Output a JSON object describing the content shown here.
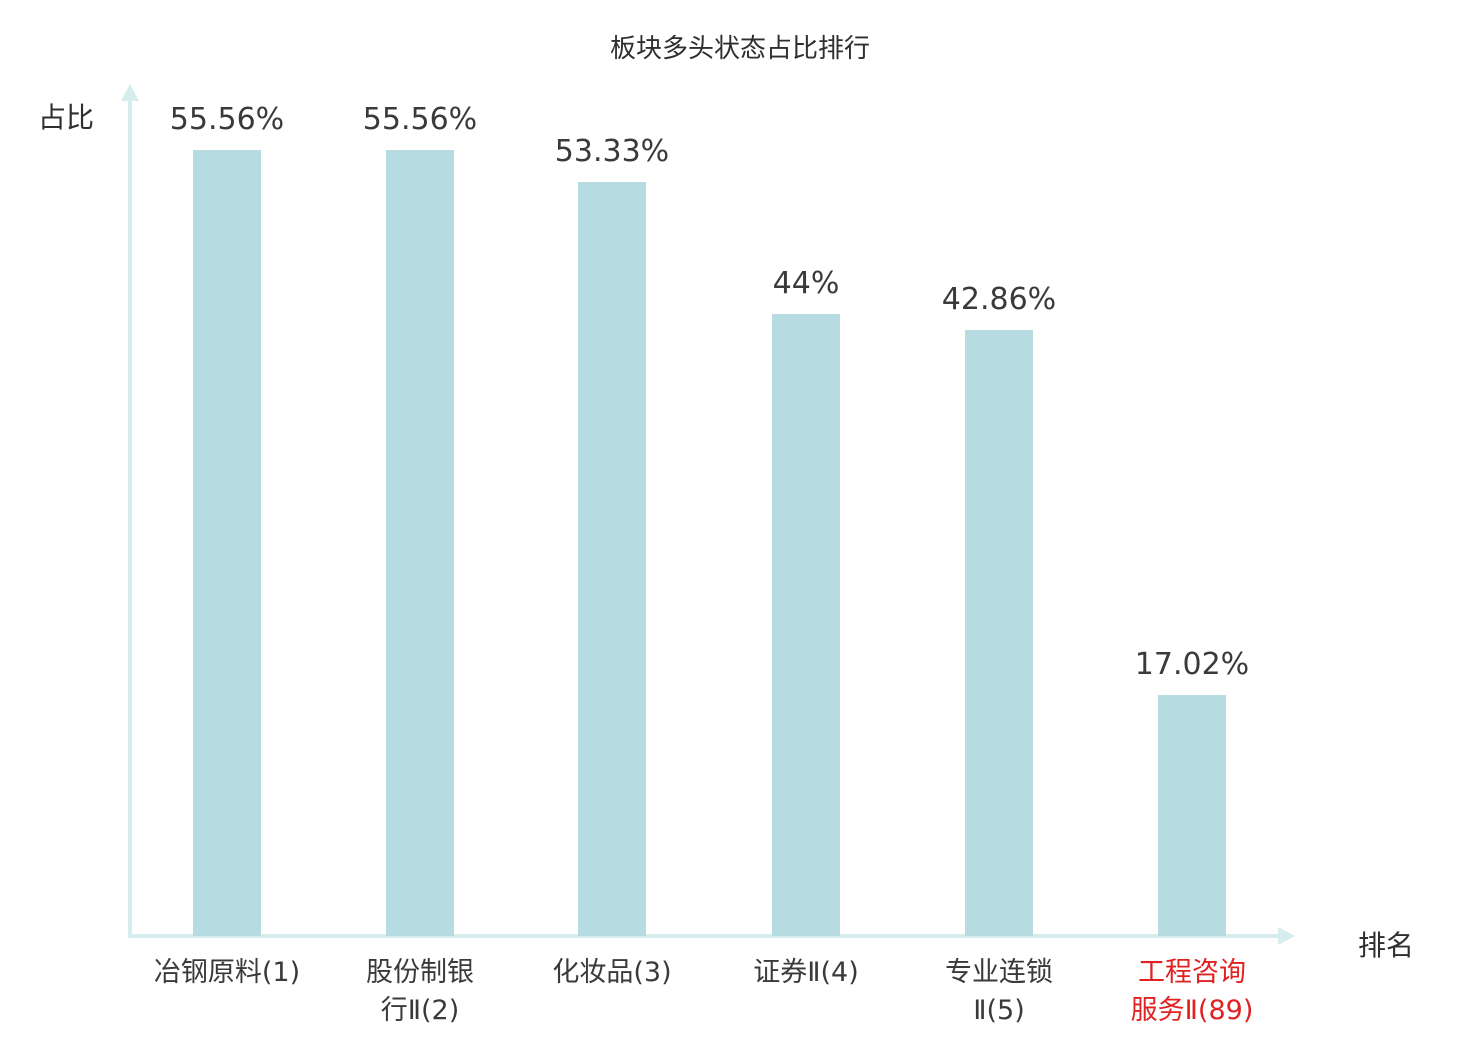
{
  "chart_data": {
    "type": "bar",
    "title": "板块多头状态占比排行",
    "ylabel": "占比",
    "xlabel": "排名",
    "categories": [
      "冶钢原料(1)",
      "股份制银\n行Ⅱ(2)",
      "化妆品(3)",
      "证券Ⅱ(4)",
      "专业连锁\nⅡ(5)",
      "工程咨询\n服务Ⅱ(89)"
    ],
    "values": [
      55.56,
      55.56,
      53.33,
      44,
      42.86,
      17.02
    ],
    "value_labels": [
      "55.56%",
      "55.56%",
      "53.33%",
      "44%",
      "42.86%",
      "17.02%"
    ],
    "highlight_index": 5,
    "ylim": [
      0,
      60
    ],
    "grid": false,
    "legend": false,
    "colors": {
      "bar": "#b6dce1",
      "axis": "#d5eded",
      "text": "#3a3a3a",
      "highlight_text": "#e02222"
    }
  }
}
